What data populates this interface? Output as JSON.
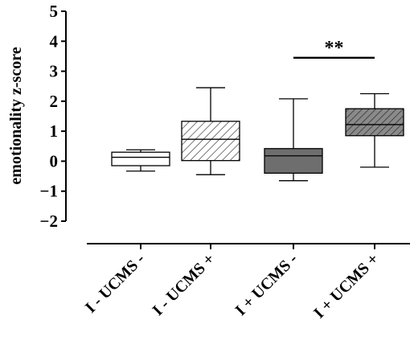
{
  "chart_data": {
    "type": "box",
    "title": "",
    "xlabel": "",
    "ylabel": "emotionality z-score",
    "ylim": [
      -2,
      5
    ],
    "yticks": [
      "5",
      "4",
      "3",
      "2",
      "1",
      "0",
      "-1",
      "-2"
    ],
    "grid": false,
    "legend": "none",
    "categories": [
      "I - UCMS -",
      "I - UCMS +",
      "I + UCMS -",
      "I + UCMS +"
    ],
    "boxes": [
      {
        "category": "I - UCMS -",
        "min": -0.33,
        "q1": -0.15,
        "median": 0.13,
        "q3": 0.3,
        "max": 0.38,
        "fill": "white"
      },
      {
        "category": "I - UCMS +",
        "min": -0.45,
        "q1": 0.02,
        "median": 0.73,
        "q3": 1.33,
        "max": 2.45,
        "fill": "hatched-light"
      },
      {
        "category": "I + UCMS -",
        "min": -0.65,
        "q1": -0.4,
        "median": 0.18,
        "q3": 0.42,
        "max": 2.08,
        "fill": "dark-gray"
      },
      {
        "category": "I + UCMS +",
        "min": -0.2,
        "q1": 0.85,
        "median": 1.22,
        "q3": 1.75,
        "max": 2.25,
        "fill": "hatched-dark"
      }
    ],
    "annotations": [
      {
        "text": "**",
        "between": [
          "I + UCMS -",
          "I + UCMS +"
        ],
        "y": 3.45
      }
    ],
    "colors": {
      "dark_fill": "#6e6e6e",
      "hatched_dark_bg": "#8a8a8a",
      "hatch_line": "#333333",
      "stroke": "#000000"
    }
  }
}
